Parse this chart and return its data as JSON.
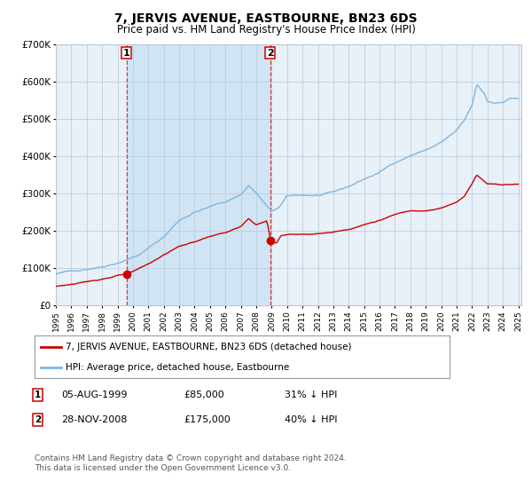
{
  "title": "7, JERVIS AVENUE, EASTBOURNE, BN23 6DS",
  "subtitle": "Price paid vs. HM Land Registry's House Price Index (HPI)",
  "hpi_color": "#7eb6e0",
  "price_color": "#cc0000",
  "background_color": "#ffffff",
  "plot_bg_color": "#e8f0f8",
  "shaded_region_color": "#d0e4f4",
  "grid_color": "#b8c8d8",
  "ylim": [
    0,
    700000
  ],
  "yticks": [
    0,
    100000,
    200000,
    300000,
    400000,
    500000,
    600000,
    700000
  ],
  "ytick_labels": [
    "£0",
    "£100K",
    "£200K",
    "£300K",
    "£400K",
    "£500K",
    "£600K",
    "£700K"
  ],
  "sale1_date": "05-AUG-1999",
  "sale1_year": 1999.59,
  "sale1_price": 85000,
  "sale1_label": "31% ↓ HPI",
  "sale2_date": "28-NOV-2008",
  "sale2_year": 2008.91,
  "sale2_price": 175000,
  "sale2_label": "40% ↓ HPI",
  "legend_line1": "7, JERVIS AVENUE, EASTBOURNE, BN23 6DS (detached house)",
  "legend_line2": "HPI: Average price, detached house, Eastbourne",
  "footnote": "Contains HM Land Registry data © Crown copyright and database right 2024.\nThis data is licensed under the Open Government Licence v3.0.",
  "xlabel_start": 1995,
  "xlabel_end": 2025
}
